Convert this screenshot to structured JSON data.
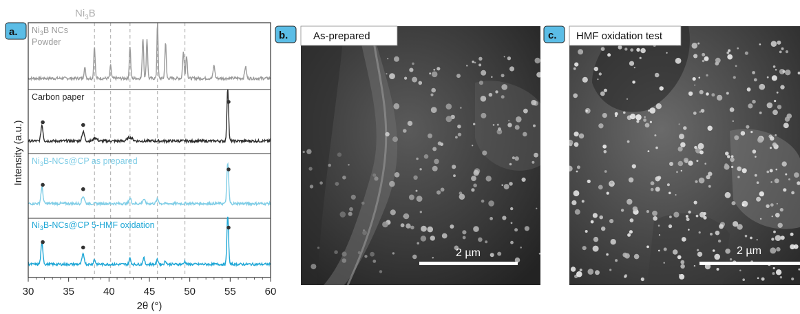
{
  "panels": {
    "a_tag": "a.",
    "b_tag": "b.",
    "c_tag": "c.",
    "b_title": "As-prepared",
    "c_title": "HMF oxidation test",
    "b_scale": "2 µm",
    "c_scale": "2 µm"
  },
  "colors": {
    "tag_bg": "#5bbde6",
    "powder": "#9a9a9a",
    "carbon": "#2e2e2e",
    "asprep": "#7fcde6",
    "hmf": "#1fa7d6",
    "marker": "#333333"
  },
  "chart_data": {
    "type": "line",
    "title": "",
    "xlabel": "2θ (°)",
    "ylabel": "Intensity (a.u.)",
    "xlim": [
      30,
      60
    ],
    "xticks": [
      30,
      35,
      40,
      45,
      50,
      55,
      60
    ],
    "reference": {
      "label_main": "Ni",
      "label_sub": "3",
      "label_end": "B",
      "positions": [
        38.2,
        40.2,
        42.6,
        46.0,
        49.4
      ]
    },
    "series": [
      {
        "name_main": "Ni",
        "name_sub": "3",
        "name_end": "B NCs",
        "name_line2": "Powder",
        "baseline": 0.05,
        "peaks": [
          [
            37.0,
            0.18,
            0.14
          ],
          [
            38.2,
            0.55,
            0.12
          ],
          [
            40.2,
            0.22,
            0.12
          ],
          [
            42.6,
            0.55,
            0.12
          ],
          [
            44.2,
            0.7,
            0.12
          ],
          [
            44.7,
            0.68,
            0.12
          ],
          [
            46.0,
            1.0,
            0.1
          ],
          [
            47.0,
            0.62,
            0.12
          ],
          [
            49.2,
            0.45,
            0.13
          ],
          [
            49.6,
            0.4,
            0.13
          ],
          [
            53.0,
            0.22,
            0.15
          ],
          [
            56.9,
            0.2,
            0.15
          ]
        ],
        "markers": []
      },
      {
        "name_main": "Carbon paper",
        "name_sub": "",
        "name_end": "",
        "name_line2": "",
        "baseline": 0.08,
        "peaks": [
          [
            31.7,
            0.3,
            0.18
          ],
          [
            36.8,
            0.17,
            0.22
          ],
          [
            38.3,
            0.06,
            0.3
          ],
          [
            42.6,
            0.07,
            0.4
          ],
          [
            54.7,
            1.0,
            0.14
          ]
        ],
        "markers": [
          31.8,
          36.8,
          54.8
        ]
      },
      {
        "name_main": "Ni",
        "name_sub": "3",
        "name_end": "B-NCs@CP as prepared",
        "name_line2": "",
        "baseline": 0.12,
        "peaks": [
          [
            31.7,
            0.3,
            0.18
          ],
          [
            36.8,
            0.14,
            0.22
          ],
          [
            42.6,
            0.1,
            0.2
          ],
          [
            44.3,
            0.08,
            0.2
          ],
          [
            46.0,
            0.08,
            0.2
          ],
          [
            54.7,
            0.75,
            0.16
          ]
        ],
        "markers": [
          31.8,
          36.8,
          54.8
        ]
      },
      {
        "name_main": "Ni",
        "name_sub": "3",
        "name_end": "B-NCs@CP 5-HMF oxidation",
        "name_line2": "",
        "baseline": 0.1,
        "peaks": [
          [
            31.7,
            0.42,
            0.18
          ],
          [
            36.8,
            0.2,
            0.2
          ],
          [
            38.2,
            0.1,
            0.15
          ],
          [
            42.6,
            0.12,
            0.15
          ],
          [
            44.3,
            0.13,
            0.15
          ],
          [
            46.0,
            0.1,
            0.15
          ],
          [
            47.0,
            0.07,
            0.15
          ],
          [
            49.4,
            0.06,
            0.15
          ],
          [
            54.7,
            1.0,
            0.14
          ]
        ],
        "markers": [
          31.8,
          36.8,
          54.8
        ]
      }
    ],
    "grid": false,
    "legend": "none"
  }
}
